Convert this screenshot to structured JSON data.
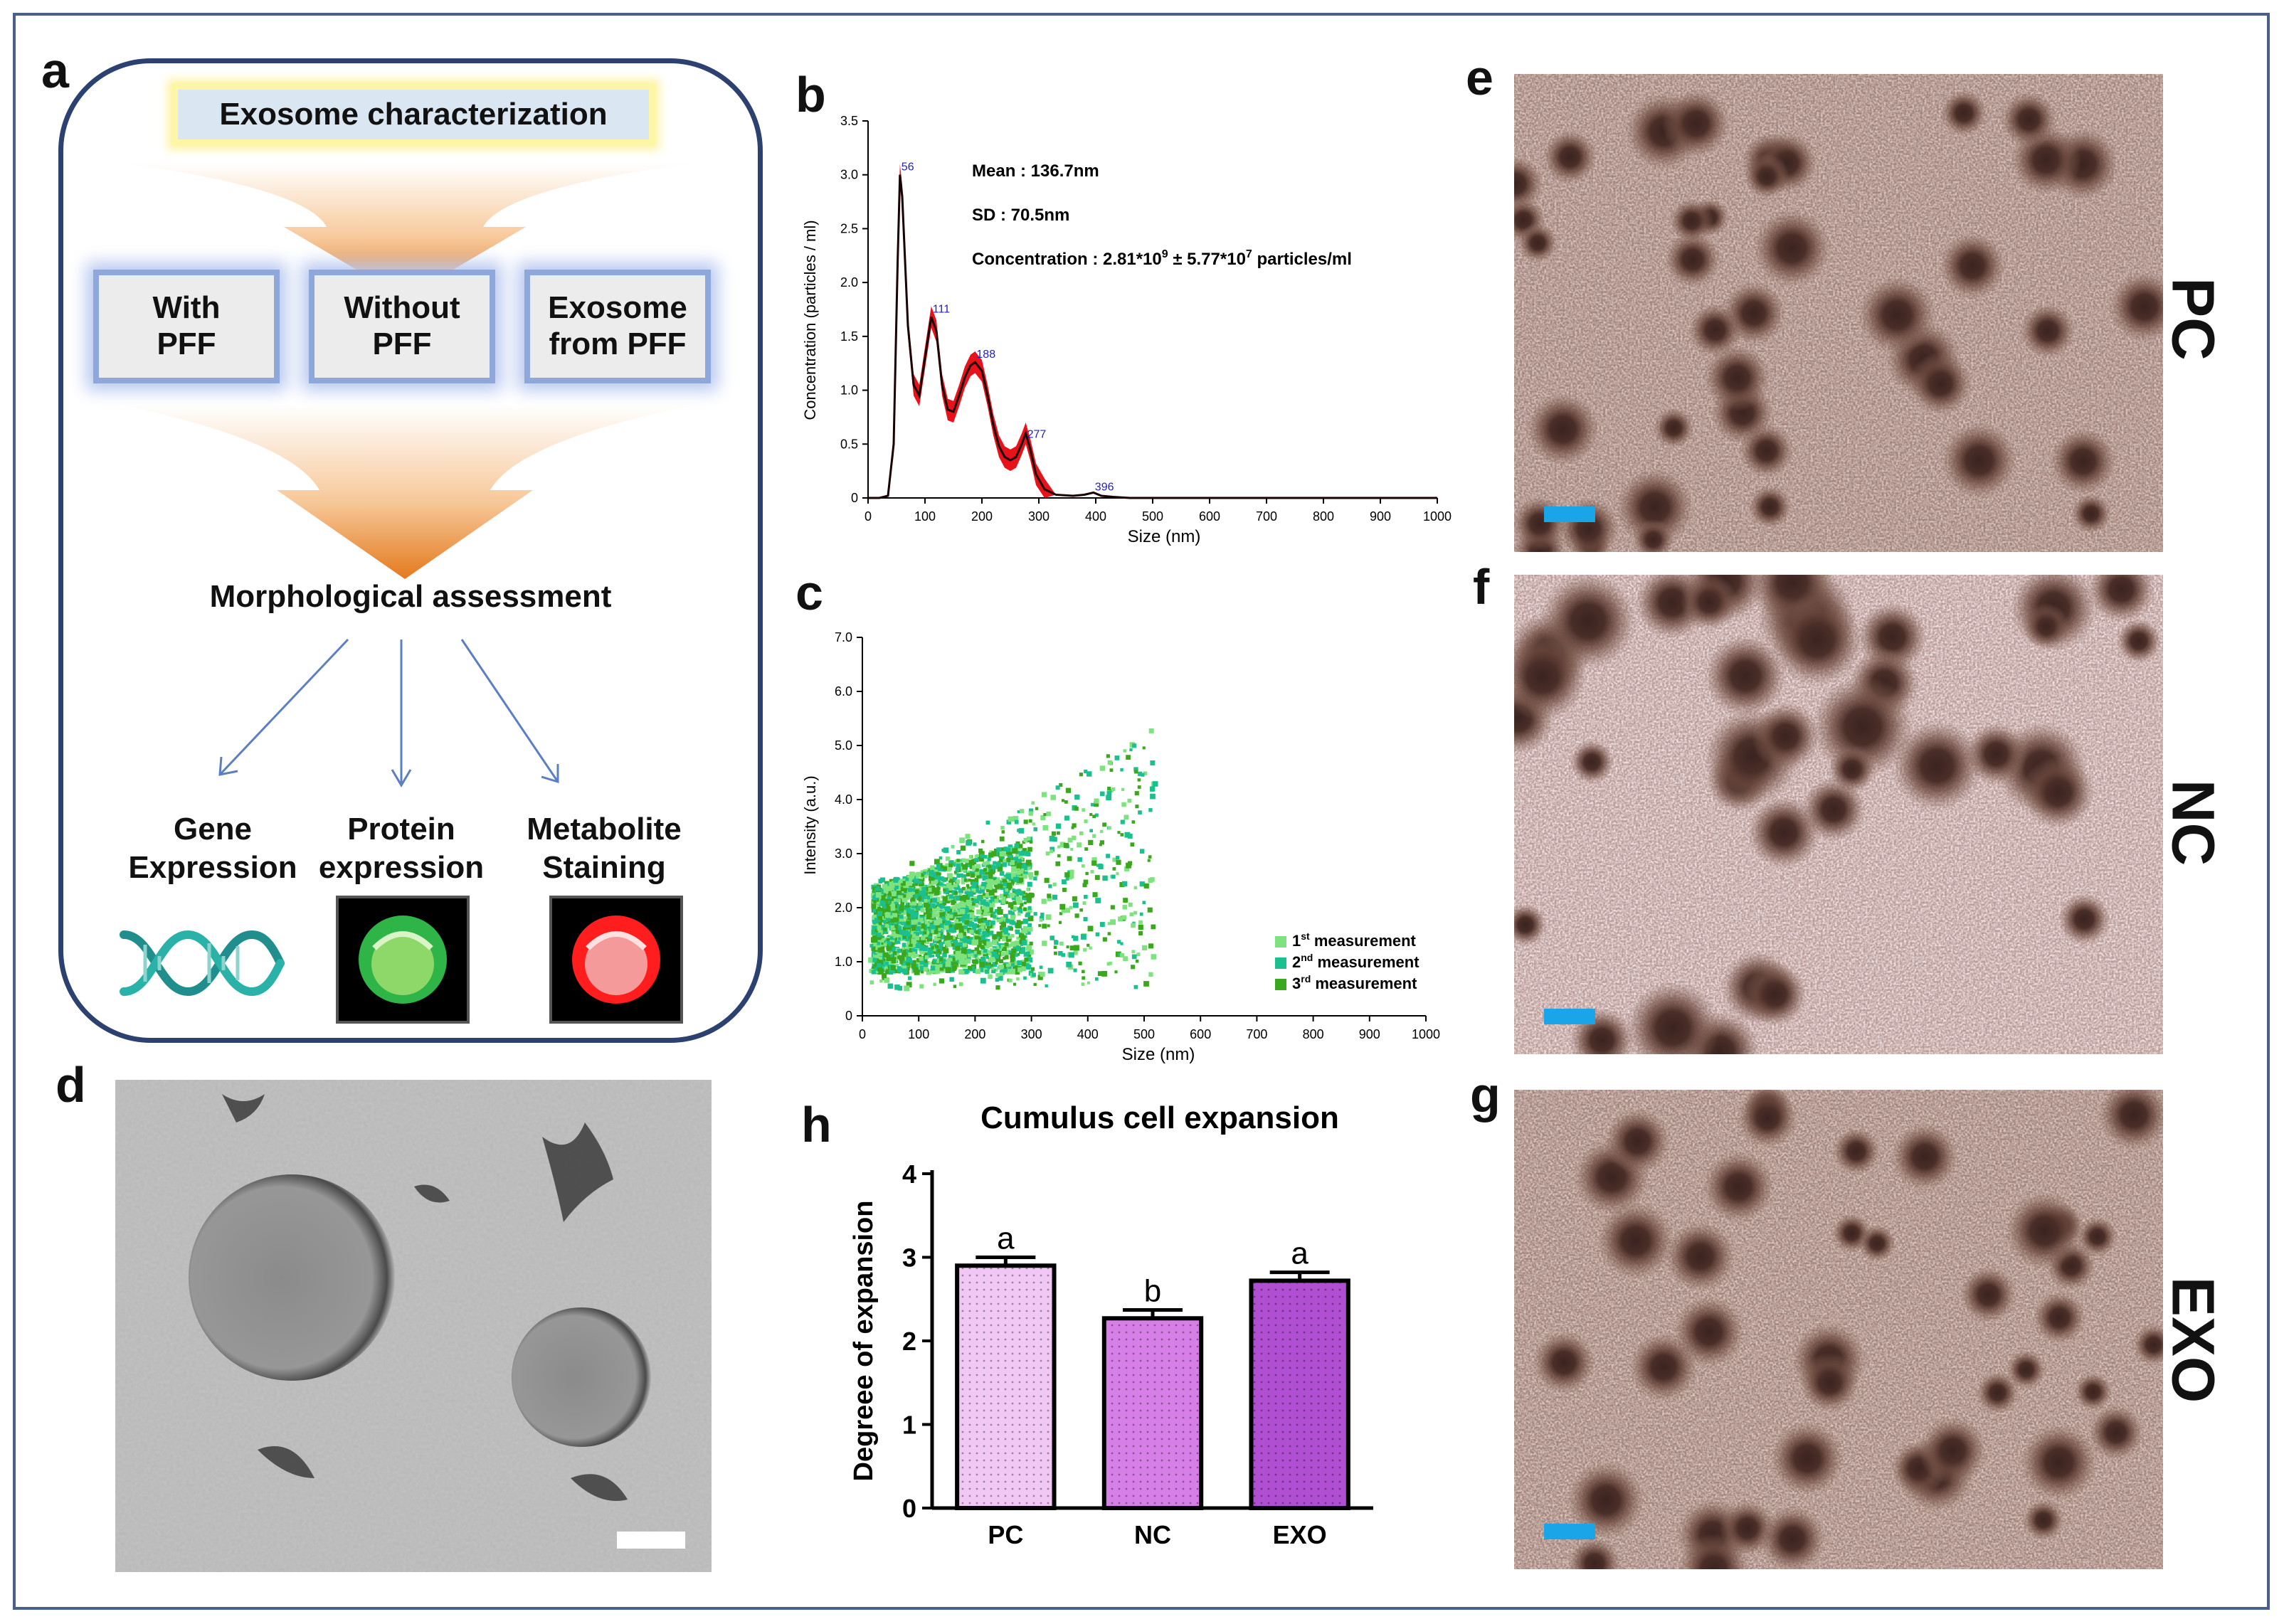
{
  "panel_labels": {
    "a": "a",
    "b": "b",
    "c": "c",
    "d": "d",
    "e": "e",
    "f": "f",
    "g": "g",
    "h": "h"
  },
  "flowchart": {
    "title": "Exosome characterization",
    "groups": [
      "With\nPFF",
      "Without\nPFF",
      "Exosome\nfrom PFF"
    ],
    "morphology": "Morphological assessment",
    "assays": [
      "Gene\nExpression",
      "Protein\nexpression",
      "Metabolite\nStaining"
    ],
    "icons": [
      "dna-helix-icon",
      "green-fluorescent-cell-icon",
      "red-fluorescent-cell-icon"
    ],
    "colors": {
      "arrow": "#e8832a",
      "border": "#2c4170",
      "green": "#33c24a",
      "red": "#ff2020"
    }
  },
  "micrographs": {
    "e": {
      "label": "PC"
    },
    "f": {
      "label": "NC"
    },
    "g": {
      "label": "EXO"
    }
  },
  "chart_data": [
    {
      "panel": "b",
      "type": "line",
      "xlabel": "Size (nm)",
      "ylabel": "Concentration (particles / ml)",
      "xlim": [
        0,
        1000
      ],
      "ylim": [
        0,
        3.5
      ],
      "xticks": [
        "0",
        "100",
        "200",
        "300",
        "400",
        "500",
        "600",
        "700",
        "800",
        "900",
        "1000"
      ],
      "yticks": [
        "0",
        "0.5",
        "1.0",
        "1.5",
        "2.0",
        "2.5",
        "3.0",
        "3.5"
      ],
      "annotations": [
        "Mean : 136.7nm",
        "SD : 70.5nm",
        "Concentration : 2.81*10",
        "9",
        " ± 5.77*10",
        "7",
        " particles/ml"
      ],
      "peak_labels": [
        {
          "x": 56,
          "y": 3.0,
          "text": "56"
        },
        {
          "x": 111,
          "y": 1.68,
          "text": "111"
        },
        {
          "x": 188,
          "y": 1.26,
          "text": "188"
        },
        {
          "x": 277,
          "y": 0.52,
          "text": "277"
        },
        {
          "x": 396,
          "y": 0.03,
          "text": "396"
        }
      ],
      "series": [
        {
          "name": "mean",
          "x": [
            0,
            20,
            35,
            45,
            52,
            56,
            60,
            70,
            80,
            90,
            100,
            111,
            120,
            130,
            140,
            150,
            160,
            170,
            180,
            188,
            200,
            210,
            220,
            230,
            240,
            250,
            260,
            270,
            277,
            285,
            295,
            310,
            330,
            360,
            380,
            396,
            410,
            430,
            460,
            500,
            600,
            800,
            1000
          ],
          "y": [
            0,
            0,
            0.02,
            0.5,
            2.2,
            3.0,
            2.8,
            1.6,
            1.05,
            0.95,
            1.3,
            1.68,
            1.55,
            1.05,
            0.82,
            0.8,
            0.95,
            1.12,
            1.23,
            1.26,
            1.18,
            0.95,
            0.68,
            0.48,
            0.38,
            0.35,
            0.38,
            0.5,
            0.6,
            0.45,
            0.22,
            0.08,
            0.03,
            0.02,
            0.03,
            0.05,
            0.02,
            0.01,
            0.0,
            0.0,
            0.0,
            0.0,
            0.0
          ]
        }
      ],
      "error_band": 0.1
    },
    {
      "panel": "c",
      "type": "scatter",
      "xlabel": "Size (nm)",
      "ylabel": "Intensity (a.u.)",
      "xlim": [
        0,
        1000
      ],
      "ylim": [
        0,
        7.0
      ],
      "xticks": [
        "0",
        "100",
        "200",
        "300",
        "400",
        "500",
        "600",
        "700",
        "800",
        "900",
        "1000"
      ],
      "yticks": [
        "0",
        "1.0",
        "2.0",
        "3.0",
        "4.0",
        "5.0",
        "6.0",
        "7.0"
      ],
      "legend": [
        {
          "label": "1",
          "sup": "st",
          "rest": " measurement",
          "color": "#7ee37e"
        },
        {
          "label": "2",
          "sup": "nd",
          "rest": " measurement",
          "color": "#1cc08f"
        },
        {
          "label": "3",
          "sup": "rd",
          "rest": " measurement",
          "color": "#3aa81c"
        }
      ],
      "cloud": {
        "x_range": [
          15,
          520
        ],
        "y_range": [
          0.5,
          5.7
        ],
        "core_x": [
          20,
          300
        ],
        "core_y": [
          0.8,
          3.0
        ]
      }
    },
    {
      "panel": "h",
      "type": "bar",
      "title": "Cumulus cell expansion",
      "xlabel": "",
      "ylabel": "Degreee of expansion",
      "ylim": [
        0,
        4
      ],
      "yticks": [
        "0",
        "1",
        "2",
        "3",
        "4"
      ],
      "categories": [
        "PC",
        "NC",
        "EXO"
      ],
      "values": [
        2.9,
        2.27,
        2.72
      ],
      "errors": [
        0.1,
        0.1,
        0.1
      ],
      "letters": [
        "a",
        "b",
        "a"
      ],
      "colors": [
        "#f1c8f3",
        "#d67fe6",
        "#b04fd2"
      ]
    }
  ]
}
